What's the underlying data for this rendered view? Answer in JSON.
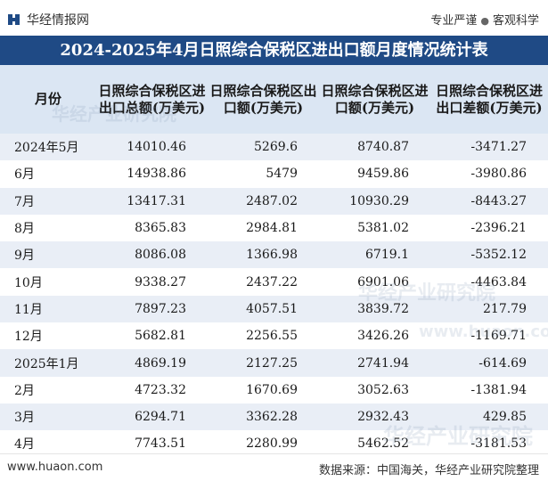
{
  "header": {
    "logo_text": "华经情报网",
    "slogan_left": "专业严谨",
    "slogan_separator": "●",
    "slogan_right": "客观科学"
  },
  "title": "2024-2025年4月日照综合保税区进出口额月度情况统计表",
  "table": {
    "columns": [
      "月份",
      "日照综合保税区进出口总额(万美元)",
      "日照综合保税区出口额(万美元)",
      "日照综合保税区进口额(万美元)",
      "日照综合保税区进出口差额(万美元)"
    ],
    "rows": [
      [
        "2024年5月",
        "14010.46",
        "5269.6",
        "8740.87",
        "-3471.27"
      ],
      [
        "6月",
        "14938.86",
        "5479",
        "9459.86",
        "-3980.86"
      ],
      [
        "7月",
        "13417.31",
        "2487.02",
        "10930.29",
        "-8443.27"
      ],
      [
        "8月",
        "8365.83",
        "2984.81",
        "5381.02",
        "-2396.21"
      ],
      [
        "9月",
        "8086.08",
        "1366.98",
        "6719.1",
        "-5352.12"
      ],
      [
        "10月",
        "9338.27",
        "2437.22",
        "6901.06",
        "-4463.84"
      ],
      [
        "11月",
        "7897.23",
        "4057.51",
        "3839.72",
        "217.79"
      ],
      [
        "12月",
        "5682.81",
        "2256.55",
        "3426.26",
        "-1169.71"
      ],
      [
        "2025年1月",
        "4869.19",
        "2127.25",
        "2741.94",
        "-614.69"
      ],
      [
        "2月",
        "4723.32",
        "1670.69",
        "3052.63",
        "-1381.94"
      ],
      [
        "3月",
        "6294.71",
        "3362.28",
        "2932.43",
        "429.85"
      ],
      [
        "4月",
        "7743.51",
        "2280.99",
        "5462.52",
        "-3181.53"
      ]
    ]
  },
  "footer": {
    "website": "www.huaon.com",
    "source": "数据来源：中国海关，华经产业研究院整理"
  },
  "watermark": {
    "text": "华经产业研究院",
    "url": "www.huaon.com"
  },
  "colors": {
    "title_bg": "#1f4a85",
    "header_bg": "#dbe6f3",
    "stripe_bg": "#e9eef6"
  }
}
